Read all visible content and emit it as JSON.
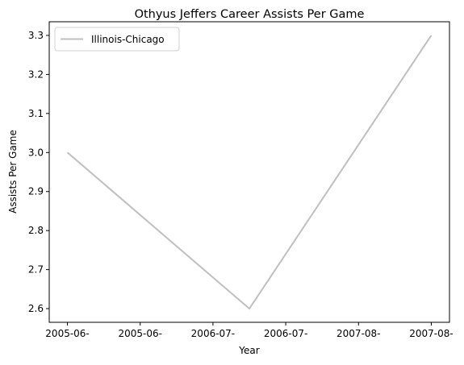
{
  "chart_data": {
    "type": "line",
    "title": "Othyus Jeffers Career Assists Per Game",
    "xlabel": "Year",
    "ylabel": "Assists Per Game",
    "x_tick_labels": [
      "2005-06-",
      "2005-06-",
      "2006-07-",
      "2006-07-",
      "2007-08-",
      "2007-08-"
    ],
    "x_tick_positions": [
      0,
      0.5,
      1,
      1.5,
      2,
      2.5
    ],
    "y_ticks": [
      2.6,
      2.7,
      2.8,
      2.9,
      3.0,
      3.1,
      3.2,
      3.3
    ],
    "y_tick_labels": [
      "2.6",
      "2.7",
      "2.8",
      "2.9",
      "3.0",
      "3.1",
      "3.2",
      "3.3"
    ],
    "xlim": [
      -0.125,
      2.625
    ],
    "ylim": [
      2.565,
      3.335
    ],
    "series": [
      {
        "name": "Illinois-Chicago",
        "color": "#bfbfbf",
        "x": [
          0,
          1.25,
          2.5
        ],
        "y": [
          3.0,
          2.6,
          3.3
        ]
      }
    ],
    "legend_position": "top-left",
    "grid": false
  }
}
